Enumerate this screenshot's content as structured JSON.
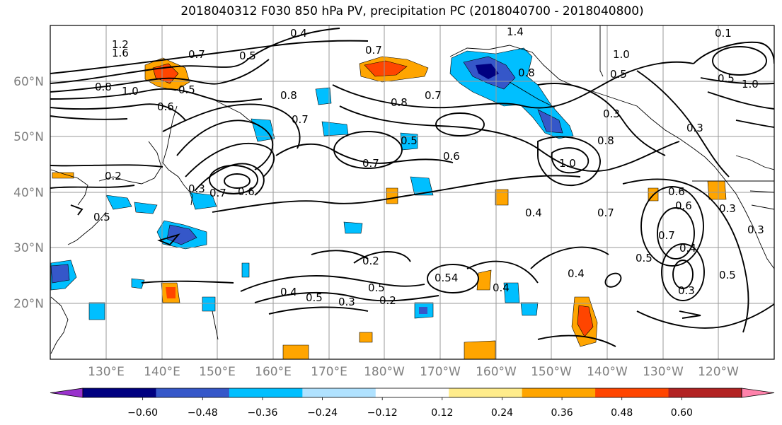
{
  "title": "2018040312 F030 850 hPa PV, precipitation PC (2018040700 - 2018040800)",
  "lat_labels": [
    "20°N",
    "30°N",
    "40°N",
    "50°N",
    "60°N"
  ],
  "lon_labels": [
    "130°E",
    "140°E",
    "150°E",
    "160°E",
    "170°E",
    "180°W",
    "170°W",
    "160°W",
    "150°W",
    "140°W",
    "130°W",
    "120°W"
  ],
  "contour_labels": [
    "1.2",
    "1.6",
    "0.8",
    "1.0",
    "0.6",
    "0.5",
    "0.7",
    "0.4",
    "0.5",
    "1.4",
    "0.7",
    "0.8",
    "0.7",
    "0.5",
    "1.0",
    "0.3",
    "0.8",
    "0.7",
    "0.5",
    "0.8",
    "0.6",
    "0.7",
    "0.8",
    "1.0",
    "0.3",
    "0.3",
    "0.6",
    "0.2",
    "0.5",
    "0.7",
    "0.6",
    "0.4",
    "0.7",
    "0.6",
    "0.3",
    "0.7",
    "0.4",
    "0.3",
    "0.5",
    "0.2",
    "0.4",
    "0.5",
    "0.5",
    "0.3",
    "0.2",
    "0.54",
    "0.4",
    "0.4",
    "0.3",
    "0.5",
    "1.0",
    "0.1",
    "0.5"
  ],
  "colorbar": {
    "ticks": [
      "−0.60",
      "−0.48",
      "−0.36",
      "−0.24",
      "−0.12",
      "0.12",
      "0.24",
      "0.36",
      "0.48",
      "0.60"
    ],
    "colors": [
      "#9932cc",
      "#000080",
      "#3557c9",
      "#00bfff",
      "#b0e2ff",
      "#ffffff",
      "#ffec8b",
      "#ffa500",
      "#ff4500",
      "#b22222",
      "#ff82ab"
    ]
  }
}
